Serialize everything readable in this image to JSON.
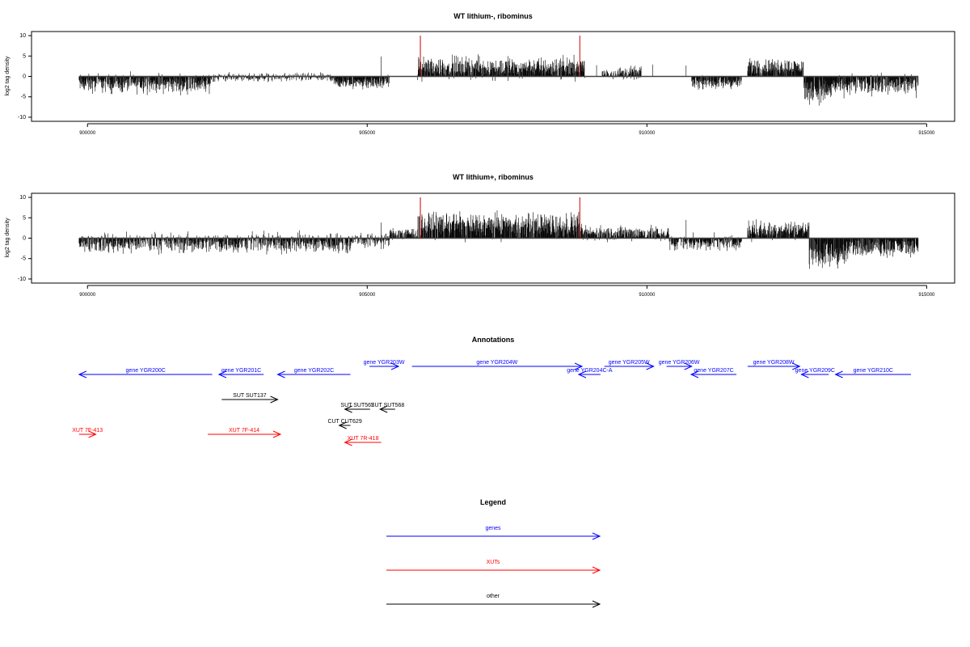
{
  "chart_data": [
    {
      "type": "bar",
      "title": "WT lithium-, ribominus",
      "ylabel": "log2 tag density",
      "xlim": [
        899000,
        915500
      ],
      "ylim": [
        -11,
        11
      ],
      "x_ticks": [
        900000,
        905000,
        910000,
        915000
      ],
      "y_ticks": [
        10,
        5,
        0,
        -5,
        -10
      ],
      "colors": {
        "signal": "#000000",
        "marker": "#cc0000"
      },
      "markers": [
        905950,
        908800
      ],
      "segments": [
        {
          "start": 899850,
          "end": 902200,
          "mean": -1.8,
          "spread": 2.2
        },
        {
          "start": 902200,
          "end": 904400,
          "mean": -0.2,
          "spread": 1.0
        },
        {
          "start": 904400,
          "end": 905400,
          "mean": -1.5,
          "spread": 1.5
        },
        {
          "start": 905900,
          "end": 908900,
          "mean": 2.2,
          "spread": 2.6
        },
        {
          "start": 909200,
          "end": 909900,
          "mean": 0.8,
          "spread": 1.5
        },
        {
          "start": 910800,
          "end": 911700,
          "mean": -1.5,
          "spread": 1.5
        },
        {
          "start": 911800,
          "end": 912800,
          "mean": 2.3,
          "spread": 2.0
        },
        {
          "start": 912800,
          "end": 913300,
          "mean": -3.5,
          "spread": 3.0
        },
        {
          "start": 913300,
          "end": 914850,
          "mean": -2.2,
          "spread": 2.3
        }
      ]
    },
    {
      "type": "bar",
      "title": "WT lithium+, ribominus",
      "ylabel": "log2 tag density",
      "xlim": [
        899000,
        915500
      ],
      "ylim": [
        -11,
        11
      ],
      "x_ticks": [
        900000,
        905000,
        910000,
        915000
      ],
      "y_ticks": [
        10,
        5,
        0,
        -5,
        -10
      ],
      "colors": {
        "signal": "#000000",
        "marker": "#cc0000"
      },
      "markers": [
        905950,
        908800
      ],
      "segments": [
        {
          "start": 899850,
          "end": 904700,
          "mean": -1.2,
          "spread": 2.4
        },
        {
          "start": 904700,
          "end": 905400,
          "mean": -0.5,
          "spread": 1.8
        },
        {
          "start": 905400,
          "end": 905900,
          "mean": 1.0,
          "spread": 1.5
        },
        {
          "start": 905900,
          "end": 908800,
          "mean": 3.2,
          "spread": 3.0
        },
        {
          "start": 908800,
          "end": 910400,
          "mean": 1.2,
          "spread": 1.8
        },
        {
          "start": 910400,
          "end": 911700,
          "mean": -1.2,
          "spread": 1.8
        },
        {
          "start": 911800,
          "end": 912900,
          "mean": 2.0,
          "spread": 2.2
        },
        {
          "start": 912900,
          "end": 913600,
          "mean": -4.0,
          "spread": 3.2
        },
        {
          "start": 913600,
          "end": 914850,
          "mean": -2.2,
          "spread": 2.2
        }
      ]
    }
  ],
  "annotations": {
    "title": "Annotations",
    "colors": {
      "genes": "#0000ff",
      "xuts": "#ff0000",
      "other": "#000000"
    },
    "features": [
      {
        "label": "gene YGR200C",
        "type": "genes",
        "start": 899850,
        "end": 902230,
        "strand": "-",
        "row": 1
      },
      {
        "label": "gene YGR201C",
        "type": "genes",
        "start": 902350,
        "end": 903150,
        "strand": "-",
        "row": 1
      },
      {
        "label": "gene YGR202C",
        "type": "genes",
        "start": 903400,
        "end": 904700,
        "strand": "-",
        "row": 1
      },
      {
        "label": "gene YGR203W",
        "type": "genes",
        "start": 905040,
        "end": 905560,
        "strand": "+",
        "row": 0
      },
      {
        "label": "gene YGR204W",
        "type": "genes",
        "start": 905800,
        "end": 908840,
        "strand": "+",
        "row": 0
      },
      {
        "label": "gene YGR204C-A",
        "type": "genes",
        "start": 908780,
        "end": 909170,
        "strand": "-",
        "row": 1
      },
      {
        "label": "gene YGR205W",
        "type": "genes",
        "start": 909240,
        "end": 910120,
        "strand": "+",
        "row": 0
      },
      {
        "label": "gene YGR206W",
        "type": "genes",
        "start": 910350,
        "end": 910800,
        "strand": "+",
        "row": 0
      },
      {
        "label": "gene YGR207C",
        "type": "genes",
        "start": 910790,
        "end": 911600,
        "strand": "-",
        "row": 1
      },
      {
        "label": "gene YGR208W",
        "type": "genes",
        "start": 911800,
        "end": 912730,
        "strand": "+",
        "row": 0
      },
      {
        "label": "gene YGR209C",
        "type": "genes",
        "start": 912760,
        "end": 913250,
        "strand": "-",
        "row": 1
      },
      {
        "label": "gene YGR210C",
        "type": "genes",
        "start": 913370,
        "end": 914720,
        "strand": "-",
        "row": 1
      },
      {
        "label": "SUT SUT137",
        "type": "other",
        "start": 902400,
        "end": 903400,
        "strand": "+",
        "row": 2
      },
      {
        "label": "SUT SUT567",
        "type": "other",
        "start": 904600,
        "end": 905050,
        "strand": "-",
        "row": 3
      },
      {
        "label": "SUT SUT568",
        "type": "other",
        "start": 905230,
        "end": 905500,
        "strand": "-",
        "row": 3
      },
      {
        "label": "CUT CUT629",
        "type": "other",
        "start": 904500,
        "end": 904700,
        "strand": "-",
        "row": 4
      },
      {
        "label": "XUT 7F-413",
        "type": "xuts",
        "start": 899850,
        "end": 900150,
        "strand": "+",
        "row": 5
      },
      {
        "label": "XUT 7F-414",
        "type": "xuts",
        "start": 902150,
        "end": 903450,
        "strand": "+",
        "row": 5
      },
      {
        "label": "XUT 7R-418",
        "type": "xuts",
        "start": 904600,
        "end": 905250,
        "strand": "-",
        "row": 6
      }
    ]
  },
  "legend": {
    "title": "Legend",
    "items": [
      {
        "label": "genes",
        "color": "#0000ff"
      },
      {
        "label": "XUTs",
        "color": "#ff0000"
      },
      {
        "label": "other",
        "color": "#000000"
      }
    ]
  }
}
